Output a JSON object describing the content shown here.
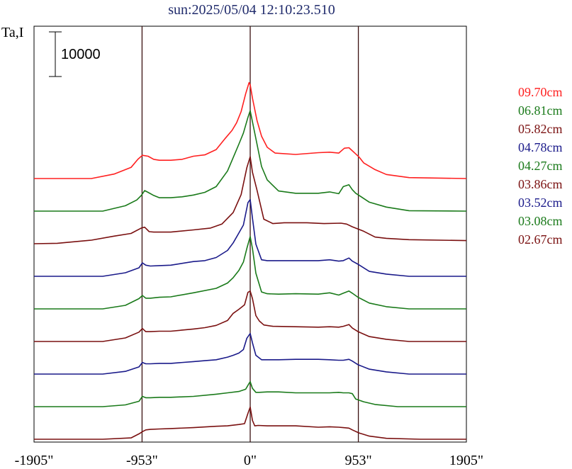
{
  "chart_data": {
    "type": "line",
    "title": "sun:2025/05/04 12:10:23.510",
    "ylabel": "Ta,I",
    "scale_bar_label": "10000",
    "xlim": [
      -1905,
      1905
    ],
    "x_ticks": [
      {
        "value": -1905,
        "label": "-1905\""
      },
      {
        "value": -953,
        "label": "-953\""
      },
      {
        "value": 0,
        "label": "0\""
      },
      {
        "value": 953,
        "label": "953\""
      },
      {
        "value": 1905,
        "label": "1905\""
      }
    ],
    "vertical_lines": [
      -953,
      0,
      953
    ],
    "grid": false,
    "legend_position": "right",
    "series": [
      {
        "name": "09.70cm",
        "color": "#ff2020",
        "baseline": 3.0,
        "scale": 1.0,
        "x": [
          -1905,
          -1400,
          -1200,
          -1050,
          -990,
          -950,
          -900,
          -850,
          -800,
          -700,
          -600,
          -500,
          -400,
          -300,
          -220,
          -160,
          -120,
          -80,
          -40,
          -10,
          0,
          20,
          60,
          100,
          150,
          220,
          400,
          600,
          700,
          780,
          830,
          870,
          900,
          930,
          960,
          1000,
          1100,
          1200,
          1400,
          1905
        ],
        "y": [
          0,
          0,
          1000,
          2500,
          4300,
          5200,
          5000,
          4300,
          4100,
          4100,
          4300,
          5000,
          5300,
          6500,
          9000,
          10800,
          12500,
          15000,
          19000,
          21500,
          21000,
          18000,
          13000,
          9500,
          7000,
          5700,
          5400,
          5800,
          5900,
          5700,
          6800,
          6900,
          6200,
          5500,
          4800,
          3500,
          2000,
          900,
          200,
          0
        ]
      },
      {
        "name": "06.81cm",
        "color": "#1a7a1a",
        "baseline": 2.5,
        "scale": 1.0,
        "x": [
          -1905,
          -1300,
          -1100,
          -1000,
          -960,
          -930,
          -900,
          -850,
          -800,
          -700,
          -600,
          -500,
          -400,
          -300,
          -200,
          -150,
          -100,
          -60,
          -20,
          0,
          20,
          60,
          100,
          150,
          250,
          400,
          600,
          700,
          780,
          820,
          870,
          900,
          930,
          960,
          1050,
          1200,
          1400,
          1905
        ],
        "y": [
          0,
          0,
          1200,
          2500,
          3500,
          4600,
          4200,
          3500,
          3000,
          3000,
          3200,
          3600,
          4200,
          5500,
          9000,
          12000,
          15000,
          17500,
          21000,
          22500,
          20000,
          15000,
          10000,
          7000,
          4500,
          4000,
          4000,
          4300,
          3900,
          5500,
          5900,
          4800,
          4000,
          3500,
          2000,
          900,
          100,
          0
        ]
      },
      {
        "name": "05.82cm",
        "color": "#7a1010",
        "baseline": 2.0,
        "scale": 1.0,
        "x": [
          -1905,
          -1700,
          -1400,
          -1200,
          -1050,
          -960,
          -930,
          -890,
          -850,
          -700,
          -500,
          -350,
          -250,
          -150,
          -80,
          -30,
          0,
          20,
          60,
          120,
          200,
          300,
          500,
          650,
          800,
          850,
          900,
          950,
          1000,
          1100,
          1200,
          1400,
          1905
        ],
        "y": [
          0,
          100,
          800,
          1700,
          2300,
          3500,
          3700,
          2700,
          2600,
          2600,
          3100,
          3500,
          4400,
          7000,
          11000,
          17000,
          19500,
          16000,
          12000,
          5500,
          4500,
          4700,
          4700,
          4500,
          4600,
          4400,
          3800,
          3300,
          2800,
          1500,
          1200,
          900,
          700
        ]
      },
      {
        "name": "04.78cm",
        "color": "#1a1a8a",
        "baseline": 1.5,
        "scale": 1.0,
        "x": [
          -1905,
          -1300,
          -1100,
          -980,
          -950,
          -920,
          -880,
          -800,
          -700,
          -500,
          -400,
          -300,
          -200,
          -150,
          -100,
          -60,
          -20,
          0,
          20,
          50,
          100,
          150,
          250,
          400,
          600,
          700,
          780,
          820,
          870,
          900,
          950,
          1050,
          1200,
          1400,
          1905
        ],
        "y": [
          0,
          0,
          800,
          1900,
          3000,
          2500,
          2300,
          2400,
          2500,
          3300,
          3500,
          4200,
          5800,
          7500,
          9700,
          11500,
          16500,
          17200,
          13000,
          7200,
          3700,
          3500,
          3500,
          3500,
          3500,
          3700,
          3400,
          3500,
          4100,
          3400,
          2700,
          1100,
          500,
          0,
          0
        ]
      },
      {
        "name": "04.27cm",
        "color": "#1a7a1a",
        "baseline": 1.0,
        "scale": 1.0,
        "x": [
          -1905,
          -1300,
          -1100,
          -980,
          -950,
          -920,
          -880,
          -800,
          -700,
          -500,
          -300,
          -200,
          -150,
          -100,
          -60,
          -30,
          0,
          20,
          50,
          100,
          150,
          250,
          400,
          600,
          700,
          780,
          820,
          870,
          900,
          950,
          1050,
          1200,
          1400,
          1905
        ],
        "y": [
          0,
          0,
          800,
          2300,
          3000,
          2400,
          2400,
          2600,
          2700,
          3600,
          4600,
          5800,
          7000,
          8600,
          10500,
          13500,
          16200,
          13500,
          8000,
          3800,
          3400,
          3300,
          3400,
          3300,
          3600,
          3100,
          3500,
          4000,
          3500,
          2600,
          1300,
          500,
          0,
          0
        ]
      },
      {
        "name": "03.86cm",
        "color": "#7a1010",
        "baseline": 0.5,
        "scale": 1.0,
        "x": [
          -1905,
          -1300,
          -1100,
          -980,
          -950,
          -920,
          -880,
          -800,
          -700,
          -500,
          -400,
          -300,
          -200,
          -150,
          -100,
          -50,
          -20,
          0,
          20,
          50,
          80,
          120,
          200,
          400,
          600,
          700,
          780,
          820,
          870,
          900,
          950,
          1050,
          1200,
          1400,
          1905
        ],
        "y": [
          0,
          0,
          800,
          2100,
          2900,
          2200,
          2200,
          2300,
          2300,
          2800,
          3100,
          3600,
          4700,
          6300,
          7200,
          8200,
          11000,
          11300,
          9600,
          5800,
          4600,
          3700,
          3400,
          3300,
          3200,
          3300,
          3200,
          3400,
          3800,
          3000,
          2200,
          1100,
          500,
          0,
          0
        ]
      },
      {
        "name": "03.52cm",
        "color": "#1a1a8a",
        "baseline": 0.0,
        "scale": 1.0,
        "x": [
          -1905,
          -1300,
          -1100,
          -980,
          -950,
          -920,
          -880,
          -800,
          -700,
          -500,
          -400,
          -300,
          -200,
          -150,
          -100,
          -60,
          -30,
          0,
          20,
          50,
          100,
          150,
          250,
          400,
          600,
          700,
          780,
          820,
          870,
          900,
          950,
          1050,
          1200,
          1400,
          1905
        ],
        "y": [
          0,
          0,
          600,
          1600,
          2600,
          2300,
          2300,
          2400,
          2400,
          2800,
          3000,
          3200,
          3800,
          4200,
          4700,
          5500,
          8000,
          9100,
          7000,
          4200,
          3200,
          3200,
          3200,
          3300,
          3300,
          3200,
          3100,
          3100,
          3300,
          2900,
          2100,
          1100,
          500,
          0,
          0
        ]
      },
      {
        "name": "03.08cm",
        "color": "#1a7a1a",
        "baseline": -0.5,
        "scale": 1.0,
        "x": [
          -1905,
          -1300,
          -1100,
          -980,
          -950,
          -920,
          -880,
          -800,
          -700,
          -500,
          -300,
          -200,
          -100,
          -40,
          -10,
          0,
          20,
          50,
          80,
          150,
          250,
          400,
          600,
          700,
          780,
          820,
          870,
          900,
          930,
          1000,
          1100,
          1300,
          1500,
          1905
        ],
        "y": [
          0,
          0,
          400,
          1200,
          2300,
          2000,
          2000,
          2100,
          2100,
          2300,
          2800,
          3100,
          3400,
          3900,
          5200,
          5600,
          4100,
          3200,
          3200,
          3300,
          3300,
          3100,
          3100,
          3100,
          3200,
          3100,
          3100,
          2900,
          1700,
          1100,
          500,
          0,
          0,
          0
        ]
      },
      {
        "name": "02.67cm",
        "color": "#7a1010",
        "baseline": -1.0,
        "scale": 1.0,
        "x": [
          -1905,
          -1300,
          -1050,
          -980,
          -950,
          -920,
          -880,
          -800,
          -700,
          -500,
          -300,
          -200,
          -100,
          -50,
          -20,
          0,
          20,
          40,
          70,
          150,
          250,
          400,
          600,
          700,
          780,
          820,
          870,
          900,
          950,
          960,
          1050,
          1200,
          1500,
          1905
        ],
        "y": [
          0,
          0,
          300,
          1200,
          1700,
          2100,
          2200,
          2300,
          2400,
          2600,
          2900,
          3000,
          3300,
          3500,
          5800,
          7200,
          4200,
          3000,
          3100,
          3000,
          3000,
          3000,
          2700,
          2800,
          2700,
          2600,
          2500,
          2100,
          1500,
          1400,
          700,
          200,
          0,
          0
        ]
      }
    ]
  }
}
